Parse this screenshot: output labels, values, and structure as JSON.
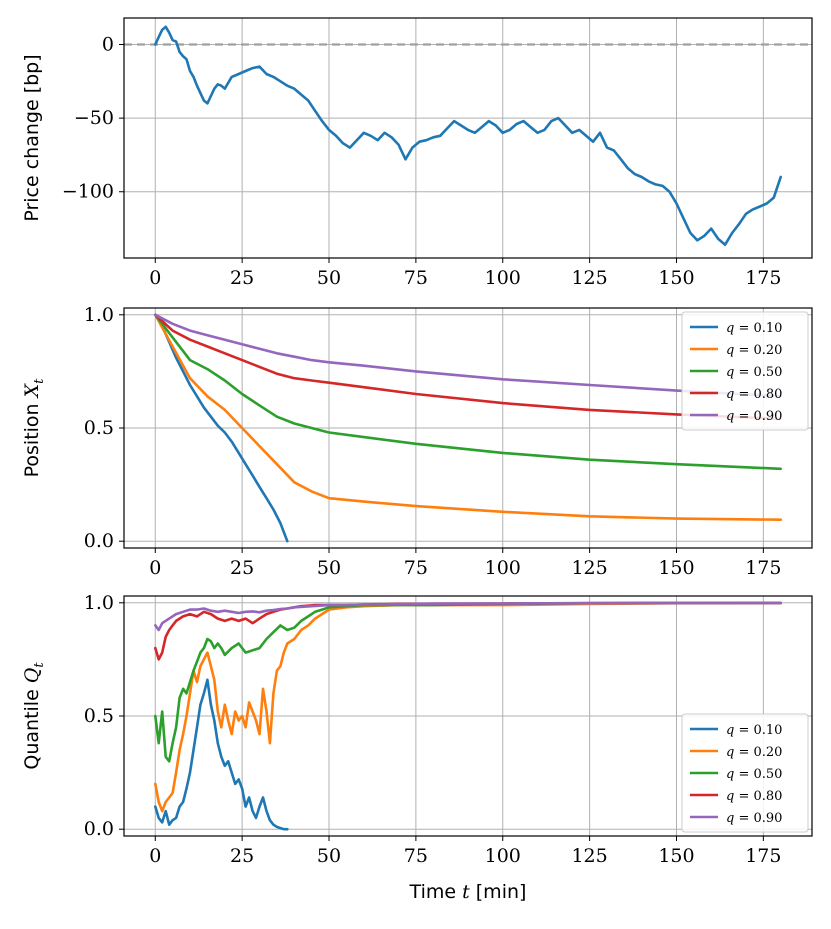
{
  "chart_data": [
    {
      "type": "line",
      "title": "",
      "xlabel": "",
      "ylabel": "Price change [bp]",
      "xlim": [
        -9,
        189
      ],
      "ylim": [
        -145,
        18
      ],
      "xticks": [
        0,
        25,
        50,
        75,
        100,
        125,
        150,
        175
      ],
      "yticks": [
        0,
        -50,
        -100
      ],
      "ytick_labels": [
        "0",
        "−50",
        "−100"
      ],
      "grid": true,
      "reference_line": {
        "y": 0,
        "style": "dashed",
        "color": "#a0a0a0"
      },
      "series": [
        {
          "color": "#1f77b4",
          "x": [
            0,
            1,
            2,
            3,
            4,
            5,
            6,
            7,
            8,
            9,
            10,
            11,
            12,
            13,
            14,
            15,
            16,
            17,
            18,
            19,
            20,
            22,
            24,
            26,
            28,
            30,
            32,
            34,
            36,
            38,
            40,
            42,
            44,
            46,
            48,
            50,
            52,
            54,
            56,
            58,
            60,
            62,
            64,
            66,
            68,
            70,
            72,
            74,
            76,
            78,
            80,
            82,
            84,
            86,
            88,
            90,
            92,
            94,
            96,
            98,
            100,
            102,
            104,
            106,
            108,
            110,
            112,
            114,
            116,
            118,
            120,
            122,
            124,
            126,
            128,
            130,
            132,
            134,
            136,
            138,
            140,
            142,
            144,
            146,
            148,
            150,
            152,
            154,
            156,
            158,
            160,
            162,
            164,
            166,
            168,
            170,
            172,
            174,
            176,
            178,
            180
          ],
          "values": [
            0,
            5,
            10,
            12,
            8,
            3,
            2,
            -5,
            -8,
            -10,
            -18,
            -22,
            -28,
            -33,
            -38,
            -40,
            -35,
            -30,
            -27,
            -28,
            -30,
            -22,
            -20,
            -18,
            -16,
            -15,
            -20,
            -22,
            -25,
            -28,
            -30,
            -34,
            -38,
            -45,
            -52,
            -58,
            -62,
            -67,
            -70,
            -65,
            -60,
            -62,
            -65,
            -60,
            -63,
            -68,
            -78,
            -70,
            -66,
            -65,
            -63,
            -62,
            -57,
            -52,
            -55,
            -58,
            -60,
            -56,
            -52,
            -55,
            -60,
            -58,
            -54,
            -52,
            -56,
            -60,
            -58,
            -52,
            -50,
            -55,
            -60,
            -58,
            -62,
            -66,
            -60,
            -70,
            -72,
            -78,
            -84,
            -88,
            -90,
            -93,
            -95,
            -96,
            -100,
            -108,
            -118,
            -128,
            -133,
            -130,
            -125,
            -132,
            -136,
            -128,
            -122,
            -115,
            -112,
            -110,
            -108,
            -104,
            -90
          ]
        }
      ]
    },
    {
      "type": "line",
      "title": "",
      "xlabel": "",
      "ylabel": "Position",
      "ylabel_var": "X",
      "ylabel_sub": "t",
      "xlim": [
        -9,
        189
      ],
      "ylim": [
        -0.03,
        1.03
      ],
      "xticks": [
        0,
        25,
        50,
        75,
        100,
        125,
        150,
        175
      ],
      "yticks": [
        0,
        0.5,
        1
      ],
      "ytick_labels": [
        "0.0",
        "0.5",
        "1.0"
      ],
      "grid": true,
      "legend": "top-right",
      "series": [
        {
          "name": "q = 0.10",
          "label_var": "q",
          "label_val": "= 0.10",
          "color": "#1f77b4",
          "x": [
            0,
            2,
            4,
            6,
            8,
            10,
            12,
            14,
            16,
            18,
            20,
            22,
            24,
            26,
            28,
            30,
            32,
            34,
            36,
            38
          ],
          "values": [
            1.0,
            0.95,
            0.88,
            0.81,
            0.75,
            0.69,
            0.64,
            0.59,
            0.55,
            0.51,
            0.48,
            0.44,
            0.39,
            0.34,
            0.29,
            0.24,
            0.19,
            0.14,
            0.08,
            0.0
          ]
        },
        {
          "name": "q = 0.20",
          "label_var": "q",
          "label_val": "= 0.20",
          "color": "#ff7f0e",
          "x": [
            0,
            5,
            10,
            15,
            20,
            25,
            30,
            35,
            40,
            45,
            50,
            60,
            75,
            100,
            125,
            150,
            180
          ],
          "values": [
            1.0,
            0.86,
            0.72,
            0.64,
            0.58,
            0.5,
            0.42,
            0.34,
            0.26,
            0.22,
            0.19,
            0.175,
            0.155,
            0.13,
            0.11,
            0.1,
            0.095
          ]
        },
        {
          "name": "q = 0.50",
          "label_var": "q",
          "label_val": "= 0.50",
          "color": "#2ca02c",
          "x": [
            0,
            5,
            10,
            15,
            20,
            25,
            30,
            35,
            40,
            45,
            50,
            60,
            75,
            100,
            125,
            150,
            180
          ],
          "values": [
            1.0,
            0.9,
            0.8,
            0.76,
            0.71,
            0.65,
            0.6,
            0.55,
            0.52,
            0.5,
            0.48,
            0.46,
            0.43,
            0.39,
            0.36,
            0.34,
            0.32
          ]
        },
        {
          "name": "q = 0.80",
          "label_var": "q",
          "label_val": "= 0.80",
          "color": "#d62728",
          "x": [
            0,
            5,
            10,
            15,
            20,
            25,
            30,
            35,
            40,
            45,
            50,
            60,
            75,
            100,
            125,
            150,
            180
          ],
          "values": [
            1.0,
            0.93,
            0.89,
            0.86,
            0.83,
            0.8,
            0.77,
            0.74,
            0.72,
            0.71,
            0.7,
            0.68,
            0.65,
            0.61,
            0.58,
            0.56,
            0.54
          ]
        },
        {
          "name": "q = 0.90",
          "label_var": "q",
          "label_val": "= 0.90",
          "color": "#9467bd",
          "x": [
            0,
            5,
            10,
            15,
            20,
            25,
            30,
            35,
            40,
            45,
            50,
            60,
            75,
            100,
            125,
            150,
            180
          ],
          "values": [
            1.0,
            0.96,
            0.93,
            0.91,
            0.89,
            0.87,
            0.85,
            0.83,
            0.815,
            0.8,
            0.79,
            0.775,
            0.75,
            0.715,
            0.69,
            0.665,
            0.64
          ]
        }
      ]
    },
    {
      "type": "line",
      "title": "",
      "xlabel": "Time",
      "xlabel_var": "t",
      "xlabel_unit": "[min]",
      "ylabel": "Quantile",
      "ylabel_var": "Q",
      "ylabel_sub": "t",
      "xlim": [
        -9,
        189
      ],
      "ylim": [
        -0.03,
        1.03
      ],
      "xticks": [
        0,
        25,
        50,
        75,
        100,
        125,
        150,
        175
      ],
      "yticks": [
        0,
        0.5,
        1
      ],
      "ytick_labels": [
        "0.0",
        "0.5",
        "1.0"
      ],
      "grid": true,
      "legend": "bottom-right",
      "series": [
        {
          "name": "q = 0.10",
          "label_var": "q",
          "label_val": "= 0.10",
          "color": "#1f77b4",
          "x": [
            0,
            1,
            2,
            3,
            4,
            5,
            6,
            7,
            8,
            9,
            10,
            11,
            12,
            13,
            14,
            15,
            16,
            17,
            18,
            19,
            20,
            21,
            22,
            23,
            24,
            25,
            26,
            27,
            28,
            29,
            30,
            31,
            32,
            33,
            34,
            35,
            36,
            37,
            38
          ],
          "values": [
            0.1,
            0.05,
            0.03,
            0.08,
            0.02,
            0.04,
            0.05,
            0.1,
            0.12,
            0.18,
            0.25,
            0.35,
            0.45,
            0.55,
            0.6,
            0.66,
            0.55,
            0.48,
            0.38,
            0.32,
            0.28,
            0.3,
            0.25,
            0.2,
            0.22,
            0.18,
            0.1,
            0.14,
            0.08,
            0.05,
            0.1,
            0.14,
            0.08,
            0.04,
            0.02,
            0.01,
            0.005,
            0.0,
            0.0
          ]
        },
        {
          "name": "q = 0.20",
          "label_var": "q",
          "label_val": "= 0.20",
          "color": "#ff7f0e",
          "x": [
            0,
            1,
            2,
            3,
            4,
            5,
            6,
            7,
            8,
            9,
            10,
            11,
            12,
            13,
            14,
            15,
            16,
            17,
            18,
            19,
            20,
            21,
            22,
            23,
            24,
            25,
            26,
            27,
            28,
            29,
            30,
            31,
            32,
            33,
            34,
            35,
            36,
            37,
            38,
            40,
            42,
            44,
            46,
            48,
            50,
            55,
            60,
            70,
            80,
            100,
            125,
            150,
            180
          ],
          "values": [
            0.2,
            0.12,
            0.08,
            0.12,
            0.14,
            0.16,
            0.25,
            0.35,
            0.42,
            0.5,
            0.6,
            0.7,
            0.65,
            0.72,
            0.75,
            0.78,
            0.72,
            0.66,
            0.52,
            0.45,
            0.55,
            0.48,
            0.42,
            0.52,
            0.48,
            0.5,
            0.45,
            0.56,
            0.52,
            0.48,
            0.42,
            0.62,
            0.52,
            0.38,
            0.6,
            0.7,
            0.72,
            0.78,
            0.82,
            0.84,
            0.88,
            0.9,
            0.93,
            0.95,
            0.97,
            0.98,
            0.985,
            0.99,
            0.99,
            0.99,
            0.995,
            0.998,
            0.999
          ]
        },
        {
          "name": "q = 0.50",
          "label_var": "q",
          "label_val": "= 0.50",
          "color": "#2ca02c",
          "x": [
            0,
            1,
            2,
            3,
            4,
            5,
            6,
            7,
            8,
            9,
            10,
            11,
            12,
            13,
            14,
            15,
            16,
            17,
            18,
            19,
            20,
            22,
            24,
            26,
            28,
            30,
            32,
            34,
            36,
            38,
            40,
            42,
            44,
            46,
            48,
            50,
            55,
            60,
            70,
            80,
            100,
            125,
            150,
            180
          ],
          "values": [
            0.5,
            0.38,
            0.52,
            0.32,
            0.3,
            0.38,
            0.45,
            0.58,
            0.62,
            0.6,
            0.65,
            0.7,
            0.74,
            0.78,
            0.8,
            0.84,
            0.83,
            0.8,
            0.82,
            0.8,
            0.77,
            0.8,
            0.82,
            0.78,
            0.79,
            0.8,
            0.84,
            0.87,
            0.9,
            0.88,
            0.89,
            0.92,
            0.94,
            0.96,
            0.97,
            0.98,
            0.985,
            0.99,
            0.99,
            0.99,
            0.995,
            0.998,
            0.999,
            0.999
          ]
        },
        {
          "name": "q = 0.80",
          "label_var": "q",
          "label_val": "= 0.80",
          "color": "#d62728",
          "x": [
            0,
            1,
            2,
            3,
            4,
            5,
            6,
            8,
            10,
            12,
            14,
            16,
            18,
            20,
            22,
            24,
            26,
            28,
            30,
            32,
            34,
            36,
            38,
            40,
            42,
            44,
            46,
            48,
            50,
            55,
            60,
            70,
            80,
            100,
            125,
            150,
            180
          ],
          "values": [
            0.8,
            0.75,
            0.78,
            0.85,
            0.88,
            0.9,
            0.92,
            0.94,
            0.95,
            0.94,
            0.96,
            0.95,
            0.93,
            0.92,
            0.93,
            0.92,
            0.93,
            0.91,
            0.93,
            0.95,
            0.96,
            0.97,
            0.975,
            0.98,
            0.985,
            0.987,
            0.99,
            0.99,
            0.99,
            0.99,
            0.992,
            0.995,
            0.996,
            0.997,
            0.998,
            0.999,
            0.999
          ]
        },
        {
          "name": "q = 0.90",
          "label_var": "q",
          "label_val": "= 0.90",
          "color": "#9467bd",
          "x": [
            0,
            1,
            2,
            4,
            6,
            8,
            10,
            12,
            14,
            16,
            18,
            20,
            22,
            24,
            26,
            28,
            30,
            32,
            34,
            36,
            38,
            40,
            45,
            50,
            55,
            60,
            70,
            80,
            100,
            125,
            150,
            180
          ],
          "values": [
            0.9,
            0.88,
            0.91,
            0.93,
            0.95,
            0.96,
            0.97,
            0.97,
            0.975,
            0.965,
            0.96,
            0.965,
            0.96,
            0.955,
            0.96,
            0.962,
            0.958,
            0.965,
            0.968,
            0.972,
            0.975,
            0.98,
            0.985,
            0.99,
            0.99,
            0.992,
            0.994,
            0.996,
            0.997,
            0.998,
            0.999,
            0.999
          ]
        }
      ]
    }
  ]
}
